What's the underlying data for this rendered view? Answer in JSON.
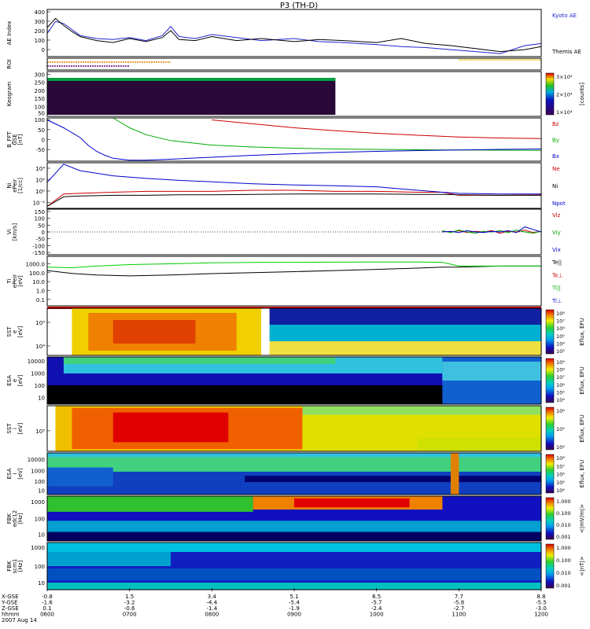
{
  "title": "P3 (TH-D)",
  "time_label_date": "2007 Aug 14",
  "time_axis": {
    "rows": [
      {
        "label": "X-GSE",
        "values": [
          "-0.8",
          "1.5",
          "3.4",
          "5.1",
          "6.5",
          "7.7",
          "8.8"
        ]
      },
      {
        "label": "Y-GSE",
        "values": [
          "-1.6",
          "-3.2",
          "-4.4",
          "-5.4",
          "-5.7",
          "-5.8",
          "-5.5"
        ]
      },
      {
        "label": "Z-GSE",
        "values": [
          "0.1",
          "-0.6",
          "-1.4",
          "-1.9",
          "-2.4",
          "-2.7",
          "-3.0"
        ]
      },
      {
        "label": "hhmm",
        "values": [
          "0600",
          "0700",
          "0800",
          "0900",
          "1000",
          "1100",
          "1200"
        ]
      }
    ]
  },
  "panels": [
    {
      "id": "ae",
      "ylabel": "AE Index",
      "yticks": [
        "400",
        "300",
        "200",
        "100",
        "0"
      ],
      "legend": [
        {
          "text": "Kyoto AE",
          "color": "#2222cc"
        },
        {
          "text": "Themis AE",
          "color": "#000000"
        }
      ]
    },
    {
      "id": "roi",
      "ylabel": "ROI"
    },
    {
      "id": "keogram",
      "ylabel": "Keogram",
      "yticks": [
        "300",
        "250",
        "200",
        "150",
        "100",
        "50"
      ],
      "colorbar": {
        "ticks": [
          "3×10⁴",
          "2×10⁴",
          "1×10⁴"
        ],
        "label": "[counts]"
      }
    },
    {
      "id": "bfgm",
      "ylabel": [
        "B_FFT",
        "GSE",
        "[nT]"
      ],
      "yticks": [
        "100",
        "50",
        "0",
        "-50"
      ],
      "legend": [
        {
          "text": "Bz",
          "color": "#cc0000"
        },
        {
          "text": "By",
          "color": "#00aa00"
        },
        {
          "text": "Bx",
          "color": "#0000cc"
        }
      ]
    },
    {
      "id": "ni",
      "ylabel": [
        "Ni",
        "ePeir",
        "[1/cc]"
      ],
      "yticks": [
        "10⁴",
        "10²",
        "10⁰",
        "10⁻²"
      ],
      "legend": [
        {
          "text": "Ne",
          "color": "#cc0000"
        },
        {
          "text": "Ni",
          "color": "#000000"
        },
        {
          "text": "Npot",
          "color": "#0000cc"
        }
      ]
    },
    {
      "id": "vi",
      "ylabel": [
        "Vi",
        "[km/s]"
      ],
      "yticks": [
        "150",
        "100",
        "50",
        "0",
        "-50",
        "-100",
        "-150"
      ],
      "legend": [
        {
          "text": "Viz",
          "color": "#cc0000"
        },
        {
          "text": "Viy",
          "color": "#00aa00"
        },
        {
          "text": "Vix",
          "color": "#0000cc"
        }
      ]
    },
    {
      "id": "ti",
      "ylabel": [
        "Ti",
        "ePeir",
        "[eV]"
      ],
      "yticks": [
        "1000.0",
        "100.0",
        "10.0",
        "1.0",
        "0.1"
      ],
      "legend": [
        {
          "text": "Te||",
          "color": "#000000"
        },
        {
          "text": "Te⊥",
          "color": "#cc0000"
        },
        {
          "text": "Ti||",
          "color": "#00aa00"
        },
        {
          "text": "Ti⊥",
          "color": "#0000cc"
        }
      ]
    },
    {
      "id": "sst_e",
      "ylabel": [
        "SST",
        "e",
        "[eV]"
      ],
      "yticks": [
        "10⁵",
        "10⁴"
      ],
      "colorbar": {
        "ticks": [
          "10⁸",
          "10⁷",
          "10⁶",
          "10⁵",
          "10⁴",
          "10³"
        ],
        "label": "Eflux, EFU"
      }
    },
    {
      "id": "esa_e",
      "ylabel": [
        "ESA",
        "e",
        "[eV]"
      ],
      "yticks": [
        "10000",
        "1000",
        "100",
        "10"
      ],
      "colorbar": {
        "ticks": [
          "10⁹",
          "10⁸",
          "10⁷",
          "10⁶",
          "10⁵",
          "10⁴"
        ],
        "label": "Eflux, EFU"
      }
    },
    {
      "id": "sst_i",
      "ylabel": [
        "SST",
        "i",
        "[eV]"
      ],
      "yticks": [
        "10⁵"
      ],
      "colorbar": {
        "ticks": [
          "10⁶",
          "10⁵",
          "10⁴"
        ],
        "label": "Eflux, EFU"
      }
    },
    {
      "id": "esa_i",
      "ylabel": [
        "ESA",
        "i",
        "[eV]"
      ],
      "yticks": [
        "10000",
        "1000",
        "100",
        "10"
      ],
      "colorbar": {
        "ticks": [
          "10⁸",
          "10⁷",
          "10⁶",
          "10⁵",
          "10⁴"
        ],
        "label": "Eflux, EFU"
      }
    },
    {
      "id": "fbk_e",
      "ylabel": [
        "FBK",
        "edc12",
        "[Hz]"
      ],
      "yticks": [
        "1000",
        "100",
        "10"
      ],
      "colorbar": {
        "ticks": [
          "1.000",
          "0.100",
          "0.010",
          "0.001"
        ],
        "label": "<|mV/m|>"
      }
    },
    {
      "id": "fbk_b",
      "ylabel": [
        "FBK",
        "scm1",
        "[Hz]"
      ],
      "yticks": [
        "1000",
        "100",
        "10"
      ],
      "colorbar": {
        "ticks": [
          "1.000",
          "0.100",
          "0.010",
          "0.001"
        ],
        "label": "<|nT|>"
      }
    }
  ],
  "chart_data": {
    "type": "line",
    "title": "P3 (TH-D)",
    "x_unit": "hhmm",
    "xlim": [
      "0600",
      "1200"
    ],
    "ae": {
      "x": [
        6.0,
        6.1,
        6.2,
        6.3,
        6.4,
        6.6,
        6.8,
        7.0,
        7.2,
        7.4,
        7.5,
        7.6,
        7.8,
        8.0,
        8.3,
        8.6,
        9.0,
        9.3,
        9.6,
        10.0,
        10.3,
        10.6,
        10.9,
        11.2,
        11.5,
        11.8,
        12.0
      ],
      "series": [
        {
          "name": "Kyoto AE",
          "values": [
            180,
            300,
            280,
            220,
            160,
            130,
            120,
            140,
            110,
            160,
            250,
            150,
            130,
            170,
            140,
            110,
            130,
            100,
            90,
            70,
            50,
            40,
            20,
            0,
            -20,
            60,
            80
          ]
        },
        {
          "name": "Themis AE",
          "values": [
            240,
            330,
            260,
            200,
            150,
            110,
            90,
            130,
            100,
            140,
            210,
            120,
            110,
            150,
            110,
            130,
            100,
            120,
            110,
            90,
            130,
            80,
            60,
            30,
            0,
            20,
            50
          ]
        }
      ],
      "ylim": [
        -50,
        420
      ]
    },
    "b_fgm": {
      "x": [
        6.0,
        6.2,
        6.4,
        6.5,
        6.6,
        6.7,
        6.8,
        7.0,
        7.2,
        7.5,
        8.0,
        8.5,
        9.0,
        9.5,
        10.0,
        10.5,
        11.0,
        11.5,
        12.0
      ],
      "series": [
        {
          "name": "Bz",
          "values": [
            null,
            null,
            null,
            null,
            null,
            null,
            null,
            null,
            null,
            null,
            150,
            130,
            110,
            95,
            82,
            72,
            63,
            58,
            55
          ]
        },
        {
          "name": "By",
          "values": [
            null,
            null,
            null,
            null,
            null,
            null,
            160,
            110,
            75,
            45,
            22,
            12,
            6,
            2,
            0,
            -2,
            -3,
            -4,
            -5
          ]
        },
        {
          "name": "Bx",
          "values": [
            150,
            110,
            60,
            20,
            -10,
            -30,
            -45,
            -55,
            -55,
            -50,
            -40,
            -30,
            -22,
            -15,
            -10,
            -6,
            -3,
            0,
            2
          ]
        }
      ],
      "ylim": [
        -60,
        160
      ]
    },
    "ni": {
      "x": [
        6.0,
        6.2,
        6.4,
        6.8,
        7.2,
        7.6,
        8.0,
        8.5,
        9.0,
        9.5,
        10.0,
        10.5,
        10.8,
        11.0,
        11.5,
        12.0
      ],
      "series": [
        {
          "name": "Ne",
          "values": [
            0.01,
            0.8,
            1,
            1.5,
            2,
            2,
            2,
            3,
            3,
            2,
            2,
            1.5,
            1.5,
            0.5,
            0.5,
            0.6
          ]
        },
        {
          "name": "Ni",
          "values": [
            0.01,
            0.3,
            0.4,
            0.5,
            0.5,
            0.6,
            0.6,
            0.7,
            0.8,
            0.8,
            0.8,
            0.7,
            0.7,
            0.6,
            0.5,
            0.5
          ]
        },
        {
          "name": "Npot",
          "values": [
            50,
            30000,
            3000,
            500,
            200,
            100,
            60,
            30,
            20,
            15,
            10,
            3,
            1.5,
            1,
            0.8,
            0.8
          ]
        }
      ],
      "ylim": [
        0.005,
        50000
      ]
    },
    "vi": {
      "x": [
        10.8,
        10.9,
        11.0,
        11.1,
        11.2,
        11.3,
        11.4,
        11.5,
        11.6,
        11.7,
        11.8,
        11.9,
        12.0
      ],
      "series": [
        {
          "name": "Viz",
          "values": [
            5,
            0,
            10,
            -5,
            5,
            0,
            10,
            -10,
            5,
            0,
            15,
            -5,
            5
          ]
        },
        {
          "name": "Viy",
          "values": [
            10,
            -5,
            15,
            0,
            -10,
            5,
            0,
            10,
            -5,
            15,
            0,
            -10,
            5
          ]
        },
        {
          "name": "Vix",
          "values": [
            0,
            5,
            -5,
            10,
            0,
            -5,
            5,
            0,
            10,
            -5,
            40,
            20,
            0
          ]
        }
      ],
      "ylim": [
        -180,
        180
      ]
    },
    "ti": {
      "x": [
        6.0,
        6.3,
        6.6,
        7.0,
        7.5,
        8.0,
        8.5,
        9.0,
        9.5,
        10.0,
        10.5,
        10.8,
        11.0,
        11.5,
        12.0
      ],
      "series": [
        {
          "name": "Te||",
          "values": [
            300,
            150,
            100,
            80,
            100,
            140,
            180,
            230,
            300,
            400,
            550,
            700,
            700,
            900,
            900
          ]
        },
        {
          "name": "Ti||",
          "values": [
            700,
            600,
            900,
            1300,
            1600,
            2000,
            2200,
            2300,
            2400,
            2500,
            2500,
            2300,
            900,
            900,
            900
          ]
        }
      ],
      "ylim": [
        0.05,
        10000
      ]
    }
  }
}
